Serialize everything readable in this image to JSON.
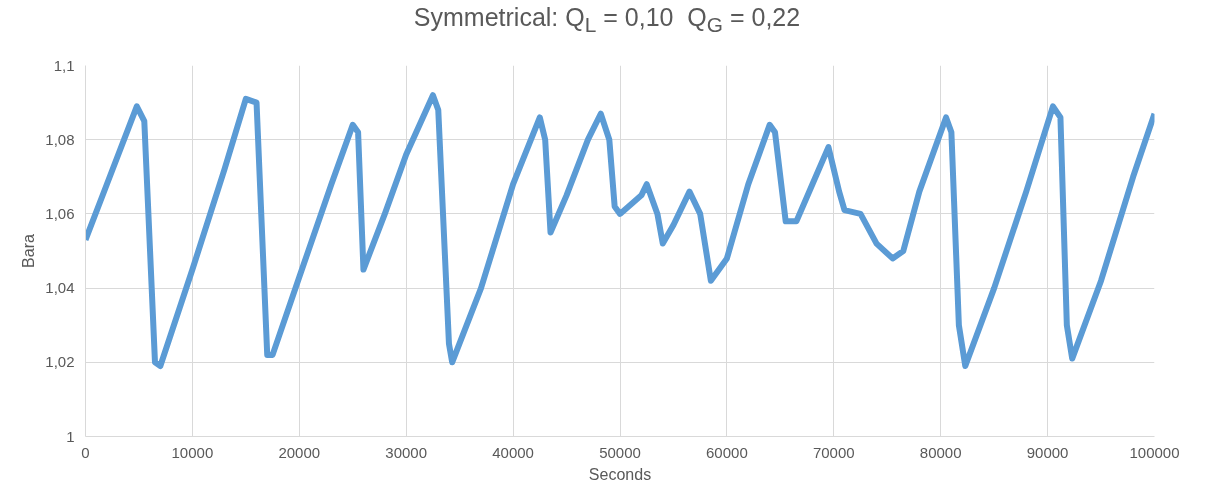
{
  "chart_data": {
    "type": "line",
    "title": "Symmetrical: Q$_{L}$ = 0,10  Q$_{G}$ = 0,22",
    "xlabel": "Seconds",
    "ylabel": "Bara",
    "x": [
      0,
      2000,
      4000,
      4800,
      5500,
      6500,
      7000,
      10000,
      13000,
      15000,
      16000,
      17000,
      17500,
      20000,
      23000,
      25000,
      25500,
      26000,
      28000,
      30000,
      32500,
      33000,
      34000,
      34300,
      37000,
      40000,
      42500,
      43000,
      43500,
      45000,
      47000,
      48200,
      49000,
      49500,
      50000,
      52000,
      52500,
      53500,
      54000,
      55000,
      56500,
      57500,
      58500,
      60000,
      62000,
      64000,
      64500,
      65500,
      66500,
      68000,
      69500,
      70500,
      71000,
      72500,
      74000,
      75500,
      76500,
      78000,
      80500,
      81000,
      81700,
      82300,
      85000,
      88000,
      90500,
      91200,
      91800,
      92300,
      95000,
      98000,
      100000
    ],
    "series": [
      {
        "color": "#5b9bd5",
        "values": [
          1.053,
          1.068,
          1.083,
          1.089,
          1.085,
          1.02,
          1.019,
          1.045,
          1.072,
          1.091,
          1.09,
          1.022,
          1.022,
          1.043,
          1.068,
          1.084,
          1.082,
          1.045,
          1.06,
          1.076,
          1.092,
          1.088,
          1.025,
          1.02,
          1.04,
          1.068,
          1.086,
          1.08,
          1.055,
          1.065,
          1.08,
          1.087,
          1.08,
          1.062,
          1.06,
          1.065,
          1.068,
          1.06,
          1.052,
          1.057,
          1.066,
          1.06,
          1.042,
          1.048,
          1.068,
          1.084,
          1.082,
          1.058,
          1.058,
          1.068,
          1.078,
          1.066,
          1.061,
          1.06,
          1.052,
          1.048,
          1.05,
          1.066,
          1.086,
          1.082,
          1.03,
          1.019,
          1.04,
          1.066,
          1.089,
          1.086,
          1.03,
          1.021,
          1.042,
          1.07,
          1.087
        ]
      }
    ],
    "xlim": [
      0,
      100000
    ],
    "xticks": [
      0,
      10000,
      20000,
      30000,
      40000,
      50000,
      60000,
      70000,
      80000,
      90000,
      100000
    ],
    "ylim": [
      1,
      1.1
    ],
    "yticks": [
      {
        "value": 1,
        "label": "1"
      },
      {
        "value": 1.02,
        "label": "1,02"
      },
      {
        "value": 1.04,
        "label": "1,04"
      },
      {
        "value": 1.06,
        "label": "1,06"
      },
      {
        "value": 1.08,
        "label": "1,08"
      },
      {
        "value": 1.1,
        "label": "1,1"
      }
    ],
    "grid": true,
    "marker": "none",
    "line_style": "solid"
  }
}
